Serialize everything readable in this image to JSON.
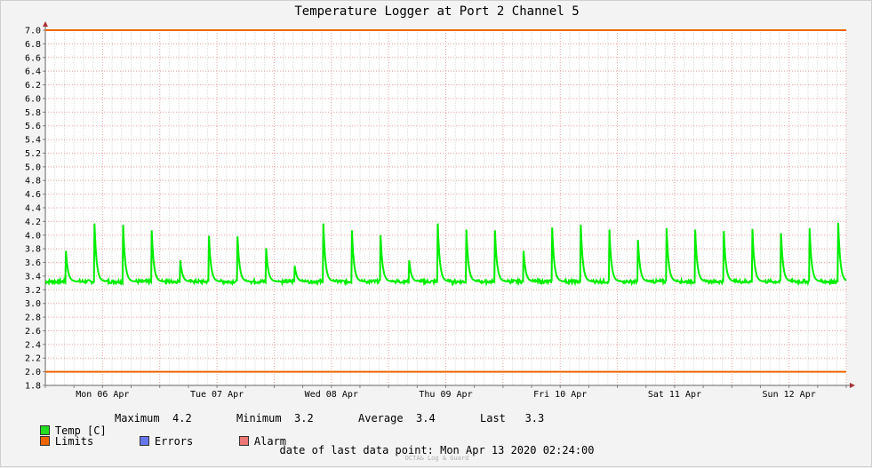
{
  "chart_data": {
    "type": "line",
    "title": "Temperature Logger at Port 2 Channel 5",
    "ylim": [
      1.8,
      7.0
    ],
    "yticks": [
      "1.8",
      "2.0",
      "2.2",
      "2.4",
      "2.6",
      "2.8",
      "3.0",
      "3.2",
      "3.4",
      "3.6",
      "3.8",
      "4.0",
      "4.2",
      "4.4",
      "4.6",
      "4.8",
      "5.0",
      "5.2",
      "5.4",
      "5.6",
      "5.8",
      "6.0",
      "6.2",
      "6.4",
      "6.6",
      "6.8",
      "7.0"
    ],
    "xlim": [
      0,
      7.0
    ],
    "xlabels": [
      {
        "x": 0.5,
        "label": "Mon 06 Apr"
      },
      {
        "x": 1.5,
        "label": "Tue 07 Apr"
      },
      {
        "x": 2.5,
        "label": "Wed 08 Apr"
      },
      {
        "x": 3.5,
        "label": "Thu 09 Apr"
      },
      {
        "x": 4.5,
        "label": "Fri 10 Apr"
      },
      {
        "x": 5.5,
        "label": "Sat 11 Apr"
      },
      {
        "x": 6.5,
        "label": "Sun 12 Apr"
      }
    ],
    "grid": true,
    "limits": [
      2.0,
      7.0
    ],
    "baseline": 3.32,
    "spikes": [
      {
        "x": 0.18,
        "y": 3.77
      },
      {
        "x": 0.43,
        "y": 4.17
      },
      {
        "x": 0.68,
        "y": 4.15
      },
      {
        "x": 0.93,
        "y": 4.07
      },
      {
        "x": 1.18,
        "y": 3.63
      },
      {
        "x": 1.43,
        "y": 3.99
      },
      {
        "x": 1.68,
        "y": 3.98
      },
      {
        "x": 1.93,
        "y": 3.81
      },
      {
        "x": 2.18,
        "y": 3.55
      },
      {
        "x": 2.43,
        "y": 4.17
      },
      {
        "x": 2.68,
        "y": 4.07
      },
      {
        "x": 2.93,
        "y": 4.0
      },
      {
        "x": 3.18,
        "y": 3.63
      },
      {
        "x": 3.43,
        "y": 4.17
      },
      {
        "x": 3.68,
        "y": 4.08
      },
      {
        "x": 3.93,
        "y": 4.07
      },
      {
        "x": 4.18,
        "y": 3.77
      },
      {
        "x": 4.43,
        "y": 4.11
      },
      {
        "x": 4.68,
        "y": 4.15
      },
      {
        "x": 4.93,
        "y": 4.08
      },
      {
        "x": 5.18,
        "y": 3.93
      },
      {
        "x": 5.43,
        "y": 4.1
      },
      {
        "x": 5.68,
        "y": 4.08
      },
      {
        "x": 5.93,
        "y": 4.06
      },
      {
        "x": 6.18,
        "y": 4.09
      },
      {
        "x": 6.43,
        "y": 4.03
      },
      {
        "x": 6.68,
        "y": 4.1
      },
      {
        "x": 6.93,
        "y": 4.18
      }
    ],
    "series_color": "#00ee00",
    "limit_color": "#ee6600"
  },
  "legend": {
    "temp_label": "Temp [C]",
    "maximum": "Maximum  4.2",
    "minimum": "Minimum  3.2",
    "average": "Average  3.4",
    "last": "Last   3.3",
    "limits_label": "Limits",
    "errors_label": "Errors",
    "alarm_label": "Alarm",
    "temp_color": "#22dd22",
    "limits_color": "#ee6600",
    "errors_color": "#6677ee",
    "alarm_color": "#ee7777"
  },
  "footer": {
    "last_point": "date of last data point:  Mon Apr 13 2020 02:24:00",
    "watermark": "OCTA& Log & Guard"
  }
}
